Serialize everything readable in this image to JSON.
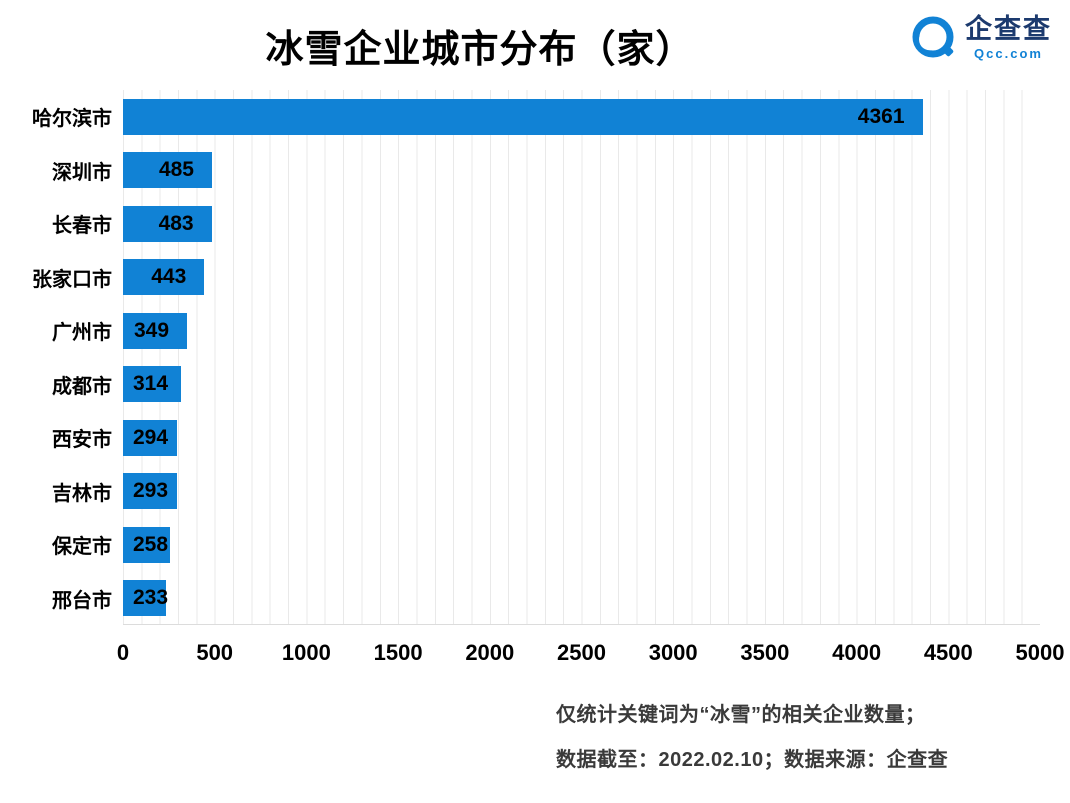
{
  "title": "冰雪企业城市分布（家）",
  "logo": {
    "brand": "企查查",
    "domain": "Qcc.com"
  },
  "chart_data": {
    "type": "bar",
    "orientation": "horizontal",
    "title": "冰雪企业城市分布（家）",
    "categories": [
      "哈尔滨市",
      "深圳市",
      "长春市",
      "张家口市",
      "广州市",
      "成都市",
      "西安市",
      "吉林市",
      "保定市",
      "邢台市"
    ],
    "values": [
      4361,
      485,
      483,
      443,
      349,
      314,
      294,
      293,
      258,
      233
    ],
    "xlabel": "",
    "ylabel": "",
    "xlim": [
      0,
      5000
    ],
    "xticks": [
      0,
      500,
      1000,
      1500,
      2000,
      2500,
      3000,
      3500,
      4000,
      4500,
      5000
    ],
    "bar_color": "#1182D5",
    "grid": "vertical, minor every 100",
    "legend": "none",
    "value_labels": "bold black at bar end"
  },
  "footer": {
    "line1": "仅统计关键词为“冰雪”的相关企业数量；",
    "line2": "数据截至：2022.02.10；数据来源：企查查"
  }
}
